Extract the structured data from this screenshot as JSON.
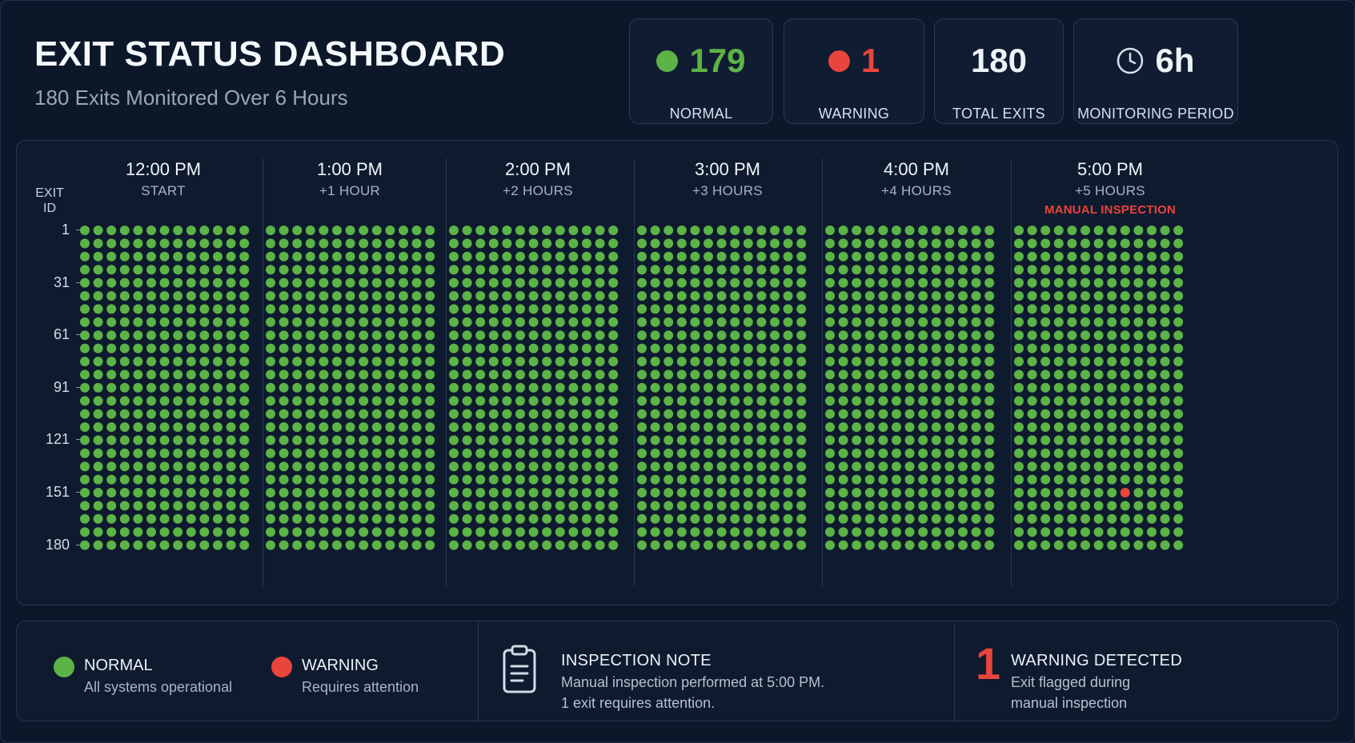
{
  "header": {
    "title": "EXIT STATUS DASHBOARD",
    "subtitle": "180 Exits Monitored Over 6 Hours"
  },
  "stats": [
    {
      "value": "179",
      "label": "NORMAL",
      "indicator": "green-dot",
      "color": "#5cb346"
    },
    {
      "value": "1",
      "label": "WARNING",
      "indicator": "red-dot",
      "color": "#e8453c"
    },
    {
      "value": "180",
      "label": "TOTAL EXITS",
      "indicator": "",
      "color": "#eef2f8"
    },
    {
      "value": "6h",
      "label": "MONITORING PERIOD",
      "indicator": "clock-icon",
      "color": "#eef2f8"
    }
  ],
  "grid": {
    "y_axis_label": "EXIT ID",
    "y_ticks": [
      "1",
      "31",
      "61",
      "91",
      "121",
      "151",
      "180"
    ],
    "columns": [
      {
        "time": "12:00 PM",
        "relative": "START",
        "note": ""
      },
      {
        "time": "1:00 PM",
        "relative": "+1 HOUR",
        "note": ""
      },
      {
        "time": "2:00 PM",
        "relative": "+2 HOURS",
        "note": ""
      },
      {
        "time": "3:00 PM",
        "relative": "+3 HOURS",
        "note": ""
      },
      {
        "time": "4:00 PM",
        "relative": "+4 HOURS",
        "note": ""
      },
      {
        "time": "5:00 PM",
        "relative": "+5 HOURS",
        "note": "MANUAL INSPECTION"
      }
    ],
    "dots_per_row": 13,
    "rows": 25,
    "warning": {
      "column": 5,
      "row": 20,
      "dot": 8
    },
    "colors": {
      "normal": "#5cb346",
      "warning": "#e8453c"
    }
  },
  "legend": [
    {
      "title": "NORMAL",
      "subtitle": "All systems operational",
      "color": "#5cb346"
    },
    {
      "title": "WARNING",
      "subtitle": "Requires attention",
      "color": "#e8453c"
    }
  ],
  "inspection_note": {
    "icon": "clipboard-icon",
    "title": "INSPECTION NOTE",
    "line1": "Manual inspection performed at 5:00 PM.",
    "line2": "1 exit requires attention."
  },
  "warning_summary": {
    "count": "1",
    "title": "WARNING DETECTED",
    "line1": "Exit flagged during",
    "line2": "manual inspection"
  }
}
